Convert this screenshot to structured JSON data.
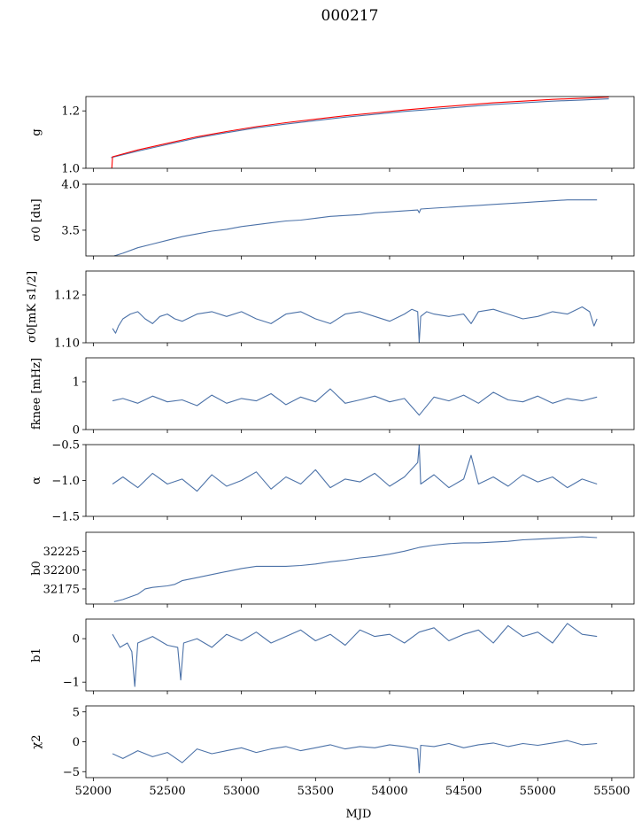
{
  "chart_data": {
    "type": "line",
    "title": "000217",
    "xlabel": "MJD",
    "xlim": [
      51950,
      55650
    ],
    "xticks": [
      52000,
      52500,
      53000,
      53500,
      54000,
      54500,
      55000,
      55500
    ],
    "xtick_labels": [
      "52000",
      "52500",
      "53000",
      "53500",
      "54000",
      "54500",
      "55000",
      "55500"
    ],
    "line_color": "#4c72a8",
    "overlay_color": "#ff0000",
    "panels": [
      {
        "ylabel": "g",
        "ylim": [
          1.0,
          1.25
        ],
        "yticks": [
          1.0,
          1.2
        ],
        "ytick_labels": [
          "1.0",
          "1.2"
        ],
        "series": [
          {
            "color": "#4c72a8",
            "x": [
              52120,
              52300,
              52500,
              52700,
              52900,
              53100,
              53300,
              53500,
              53700,
              53900,
              54100,
              54300,
              54500,
              54700,
              54900,
              55100,
              55300,
              55480
            ],
            "values": [
              1.037,
              1.06,
              1.083,
              1.106,
              1.124,
              1.141,
              1.154,
              1.166,
              1.178,
              1.188,
              1.198,
              1.206,
              1.214,
              1.222,
              1.228,
              1.234,
              1.238,
              1.242
            ]
          },
          {
            "color": "#ff0000",
            "x": [
              52125,
              52130,
              52300,
              52500,
              52700,
              52900,
              53100,
              53300,
              53500,
              53700,
              53900,
              54100,
              54300,
              54500,
              54700,
              54900,
              55100,
              55300,
              55480
            ],
            "values": [
              1.0,
              1.04,
              1.064,
              1.087,
              1.11,
              1.128,
              1.145,
              1.159,
              1.171,
              1.183,
              1.193,
              1.203,
              1.212,
              1.22,
              1.228,
              1.234,
              1.24,
              1.244,
              1.248
            ]
          }
        ]
      },
      {
        "ylabel": "σ0 [du]",
        "ylim": [
          3.22,
          4.0
        ],
        "yticks": [
          3.5,
          4.0
        ],
        "ytick_labels": [
          "3.5",
          "4.0"
        ],
        "series": [
          {
            "color": "#4c72a8",
            "x": [
              52140,
              52200,
              52300,
              52400,
              52500,
              52600,
              52700,
              52800,
              52900,
              53000,
              53100,
              53200,
              53300,
              53400,
              53500,
              53600,
              53700,
              53800,
              53900,
              54000,
              54100,
              54190,
              54200,
              54210,
              54300,
              54400,
              54500,
              54600,
              54700,
              54800,
              54900,
              55000,
              55100,
              55200,
              55300,
              55400
            ],
            "values": [
              3.22,
              3.25,
              3.31,
              3.35,
              3.39,
              3.43,
              3.46,
              3.49,
              3.51,
              3.54,
              3.56,
              3.58,
              3.6,
              3.61,
              3.63,
              3.65,
              3.66,
              3.67,
              3.69,
              3.7,
              3.71,
              3.72,
              3.69,
              3.73,
              3.74,
              3.75,
              3.76,
              3.77,
              3.78,
              3.79,
              3.8,
              3.81,
              3.82,
              3.83,
              3.83,
              3.83
            ]
          }
        ]
      },
      {
        "ylabel": "σ0[mK s1/2]",
        "ylim": [
          1.1,
          1.13
        ],
        "yticks": [
          1.1,
          1.12
        ],
        "ytick_labels": [
          "1.10",
          "1.12"
        ],
        "series": [
          {
            "color": "#4c72a8",
            "x": [
              52130,
              52150,
              52170,
              52200,
              52250,
              52300,
              52350,
              52400,
              52450,
              52500,
              52550,
              52600,
              52700,
              52800,
              52900,
              53000,
              53100,
              53200,
              53300,
              53400,
              53500,
              53600,
              53700,
              53800,
              53900,
              54000,
              54100,
              54150,
              54190,
              54200,
              54210,
              54250,
              54300,
              54400,
              54500,
              54550,
              54600,
              54700,
              54800,
              54900,
              55000,
              55100,
              55200,
              55300,
              55350,
              55380,
              55400
            ],
            "values": [
              1.106,
              1.104,
              1.107,
              1.11,
              1.112,
              1.113,
              1.11,
              1.108,
              1.111,
              1.112,
              1.11,
              1.109,
              1.112,
              1.113,
              1.111,
              1.113,
              1.11,
              1.108,
              1.112,
              1.113,
              1.11,
              1.108,
              1.112,
              1.113,
              1.111,
              1.109,
              1.112,
              1.114,
              1.113,
              1.1,
              1.111,
              1.113,
              1.112,
              1.111,
              1.112,
              1.108,
              1.113,
              1.114,
              1.112,
              1.11,
              1.111,
              1.113,
              1.112,
              1.115,
              1.113,
              1.107,
              1.11
            ]
          }
        ]
      },
      {
        "ylabel": "fknee [mHz]",
        "ylim": [
          0,
          1.5
        ],
        "yticks": [
          0,
          1
        ],
        "ytick_labels": [
          "0",
          "1"
        ],
        "series": [
          {
            "color": "#4c72a8",
            "x": [
              52130,
              52200,
              52300,
              52400,
              52500,
              52600,
              52700,
              52800,
              52900,
              53000,
              53100,
              53200,
              53300,
              53400,
              53500,
              53600,
              53700,
              53800,
              53900,
              54000,
              54100,
              54200,
              54300,
              54400,
              54500,
              54600,
              54700,
              54800,
              54900,
              55000,
              55100,
              55200,
              55300,
              55400
            ],
            "values": [
              0.6,
              0.65,
              0.55,
              0.7,
              0.58,
              0.62,
              0.5,
              0.72,
              0.55,
              0.65,
              0.6,
              0.75,
              0.52,
              0.68,
              0.58,
              0.85,
              0.55,
              0.62,
              0.7,
              0.58,
              0.65,
              0.3,
              0.68,
              0.6,
              0.72,
              0.55,
              0.78,
              0.62,
              0.58,
              0.7,
              0.55,
              0.65,
              0.6,
              0.68
            ]
          }
        ]
      },
      {
        "ylabel": "α",
        "ylim": [
          -1.5,
          -0.5
        ],
        "yticks": [
          -1.5,
          -1.0,
          -0.5
        ],
        "ytick_labels": [
          "−1.5",
          "−1.0",
          "−0.5"
        ],
        "series": [
          {
            "color": "#4c72a8",
            "x": [
              52130,
              52200,
              52300,
              52400,
              52500,
              52600,
              52700,
              52800,
              52900,
              53000,
              53100,
              53200,
              53300,
              53400,
              53500,
              53600,
              53700,
              53800,
              53900,
              54000,
              54100,
              54190,
              54200,
              54210,
              54300,
              54400,
              54500,
              54550,
              54600,
              54700,
              54800,
              54900,
              55000,
              55100,
              55200,
              55300,
              55400
            ],
            "values": [
              -1.05,
              -0.95,
              -1.1,
              -0.9,
              -1.05,
              -0.98,
              -1.15,
              -0.92,
              -1.08,
              -1.0,
              -0.88,
              -1.12,
              -0.95,
              -1.05,
              -0.85,
              -1.1,
              -0.98,
              -1.02,
              -0.9,
              -1.08,
              -0.95,
              -0.75,
              -0.5,
              -1.05,
              -0.92,
              -1.1,
              -0.98,
              -0.65,
              -1.05,
              -0.95,
              -1.08,
              -0.92,
              -1.02,
              -0.95,
              -1.1,
              -0.98,
              -1.05
            ]
          }
        ]
      },
      {
        "ylabel": "b0",
        "ylim": [
          32155,
          32250
        ],
        "yticks": [
          32175,
          32200,
          32225
        ],
        "ytick_labels": [
          "32175",
          "32200",
          "32225"
        ],
        "series": [
          {
            "color": "#4c72a8",
            "x": [
              52140,
              52200,
              52300,
              52350,
              52400,
              52500,
              52550,
              52600,
              52700,
              52800,
              52900,
              53000,
              53100,
              53200,
              53300,
              53400,
              53500,
              53600,
              53700,
              53800,
              53900,
              54000,
              54100,
              54200,
              54300,
              54400,
              54500,
              54600,
              54700,
              54800,
              54900,
              55000,
              55100,
              55200,
              55300,
              55400
            ],
            "values": [
              32158,
              32161,
              32168,
              32175,
              32177,
              32179,
              32181,
              32186,
              32190,
              32194,
              32198,
              32202,
              32205,
              32205,
              32205,
              32206,
              32208,
              32211,
              32213,
              32216,
              32218,
              32221,
              32225,
              32230,
              32233,
              32235,
              32236,
              32236,
              32237,
              32238,
              32240,
              32241,
              32242,
              32243,
              32244,
              32243
            ]
          }
        ]
      },
      {
        "ylabel": "b1",
        "ylim": [
          -1.2,
          0.45
        ],
        "yticks": [
          -1,
          0
        ],
        "ytick_labels": [
          "−1",
          "0"
        ],
        "series": [
          {
            "color": "#4c72a8",
            "x": [
              52130,
              52180,
              52230,
              52260,
              52280,
              52300,
              52400,
              52500,
              52570,
              52590,
              52610,
              52700,
              52800,
              52900,
              53000,
              53100,
              53200,
              53300,
              53400,
              53500,
              53600,
              53700,
              53800,
              53900,
              54000,
              54100,
              54200,
              54300,
              54400,
              54500,
              54600,
              54700,
              54800,
              54900,
              55000,
              55100,
              55200,
              55300,
              55400
            ],
            "values": [
              0.1,
              -0.2,
              -0.1,
              -0.3,
              -1.1,
              -0.1,
              0.05,
              -0.15,
              -0.2,
              -0.95,
              -0.1,
              0.0,
              -0.2,
              0.1,
              -0.05,
              0.15,
              -0.1,
              0.05,
              0.2,
              -0.05,
              0.1,
              -0.15,
              0.2,
              0.05,
              0.1,
              -0.1,
              0.15,
              0.25,
              -0.05,
              0.1,
              0.2,
              -0.1,
              0.3,
              0.05,
              0.15,
              -0.1,
              0.35,
              0.1,
              0.05
            ]
          }
        ]
      },
      {
        "ylabel": "χ2",
        "ylim": [
          -6,
          6
        ],
        "yticks": [
          -5,
          0,
          5
        ],
        "ytick_labels": [
          "−5",
          "0",
          "5"
        ],
        "series": [
          {
            "color": "#4c72a8",
            "x": [
              52130,
              52200,
              52300,
              52400,
              52500,
              52600,
              52700,
              52800,
              52900,
              53000,
              53100,
              53200,
              53300,
              53400,
              53500,
              53600,
              53700,
              53800,
              53900,
              54000,
              54100,
              54190,
              54200,
              54210,
              54300,
              54400,
              54500,
              54600,
              54700,
              54800,
              54900,
              55000,
              55100,
              55200,
              55300,
              55400
            ],
            "values": [
              -2.0,
              -2.8,
              -1.5,
              -2.5,
              -1.8,
              -3.5,
              -1.2,
              -2.0,
              -1.5,
              -1.0,
              -1.8,
              -1.2,
              -0.8,
              -1.5,
              -1.0,
              -0.5,
              -1.2,
              -0.8,
              -1.0,
              -0.5,
              -0.8,
              -1.2,
              -5.2,
              -0.6,
              -0.8,
              -0.3,
              -1.0,
              -0.5,
              -0.2,
              -0.8,
              -0.3,
              -0.6,
              -0.2,
              0.2,
              -0.5,
              -0.3
            ]
          }
        ]
      }
    ]
  }
}
